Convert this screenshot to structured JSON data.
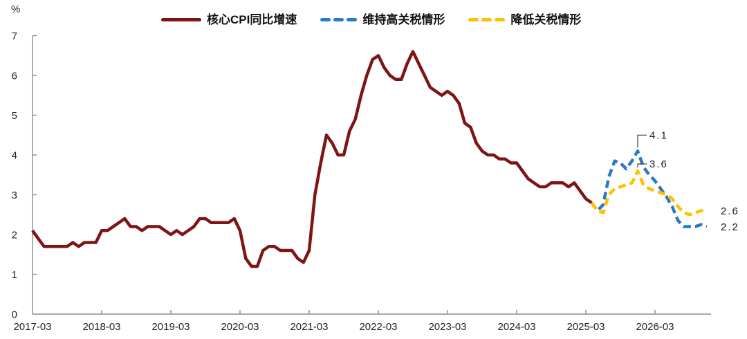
{
  "chart": {
    "unit_label": "%",
    "colors": {
      "history": "#7E1416",
      "high_tariff": "#2B79C6",
      "low_tariff": "#FFC000",
      "axis": "#8C8C8C",
      "text": "#1F1F1F",
      "callout_line": "#404040"
    },
    "legend": [
      {
        "key": "history",
        "label": "核心CPI同比增速",
        "style": "solid"
      },
      {
        "key": "high_tariff",
        "label": "维持高关税情形",
        "style": "dashed"
      },
      {
        "key": "low_tariff",
        "label": "降低关税情形",
        "style": "dashed"
      }
    ],
    "chart_data": {
      "type": "line",
      "title": "",
      "xlabel": "",
      "ylabel": "%",
      "ylim": [
        0,
        7
      ],
      "yticks": [
        0,
        1,
        2,
        3,
        4,
        5,
        6,
        7
      ],
      "xticks": [
        "2017-03",
        "2018-03",
        "2019-03",
        "2020-03",
        "2021-03",
        "2022-03",
        "2023-03",
        "2024-03",
        "2025-03",
        "2026-03"
      ],
      "grid": false,
      "legend_position": "top",
      "series": [
        {
          "key": "high_tariff",
          "name": "维持高关税情形",
          "color": "#2B79C6",
          "dash": true,
          "start": "2025-04",
          "values": [
            2.8,
            2.6,
            2.75,
            3.45,
            3.85,
            3.8,
            3.65,
            3.85,
            4.1,
            3.7,
            3.5,
            3.35,
            3.15,
            2.95,
            2.7,
            2.35,
            2.2,
            2.2,
            2.2,
            2.25,
            2.2
          ]
        },
        {
          "key": "low_tariff",
          "name": "降低关税情形",
          "color": "#FFC000",
          "dash": true,
          "start": "2025-04",
          "values": [
            2.8,
            2.6,
            2.55,
            3.0,
            3.15,
            3.2,
            3.25,
            3.3,
            3.6,
            3.25,
            3.15,
            3.1,
            3.05,
            3.0,
            2.9,
            2.7,
            2.55,
            2.5,
            2.55,
            2.6,
            2.6
          ]
        },
        {
          "key": "history",
          "name": "核心CPI同比增速",
          "color": "#7E1416",
          "dash": false,
          "start": "2017-03",
          "values": [
            2.1,
            1.9,
            1.7,
            1.7,
            1.7,
            1.7,
            1.7,
            1.8,
            1.7,
            1.8,
            1.8,
            1.8,
            2.1,
            2.1,
            2.2,
            2.3,
            2.4,
            2.2,
            2.2,
            2.1,
            2.2,
            2.2,
            2.2,
            2.1,
            2.0,
            2.1,
            2.0,
            2.1,
            2.2,
            2.4,
            2.4,
            2.3,
            2.3,
            2.3,
            2.3,
            2.4,
            2.1,
            1.4,
            1.2,
            1.2,
            1.6,
            1.7,
            1.7,
            1.6,
            1.6,
            1.6,
            1.4,
            1.3,
            1.6,
            3.0,
            3.8,
            4.5,
            4.3,
            4.0,
            4.0,
            4.6,
            4.9,
            5.5,
            6.0,
            6.4,
            6.5,
            6.2,
            6.0,
            5.9,
            5.9,
            6.3,
            6.6,
            6.3,
            6.0,
            5.7,
            5.6,
            5.5,
            5.6,
            5.5,
            5.3,
            4.8,
            4.7,
            4.3,
            4.1,
            4.0,
            4.0,
            3.9,
            3.9,
            3.8,
            3.8,
            3.6,
            3.4,
            3.3,
            3.2,
            3.2,
            3.3,
            3.3,
            3.3,
            3.2,
            3.3,
            3.1,
            2.9,
            2.8
          ]
        }
      ],
      "annotations": [
        {
          "text": "4.1",
          "series": "high_tariff",
          "month": "2025-12",
          "style": "callout",
          "label_dy": -23
        },
        {
          "text": "3.6",
          "series": "low_tariff",
          "month": "2025-12",
          "style": "callout",
          "label_dy": -10
        },
        {
          "text": "2.6",
          "series": "low_tariff",
          "month": "2026-12",
          "style": "end"
        },
        {
          "text": "2.2",
          "series": "high_tariff",
          "month": "2026-12",
          "style": "end"
        }
      ]
    }
  }
}
